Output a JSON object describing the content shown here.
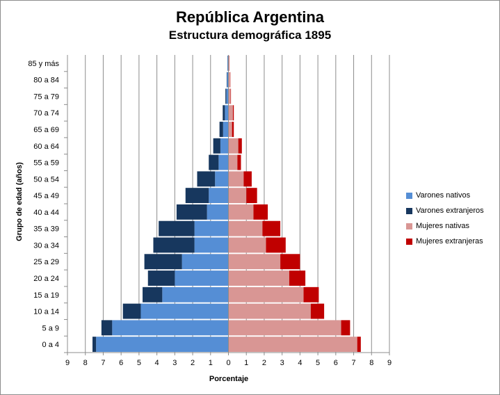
{
  "chart_data": {
    "type": "bar",
    "orientation": "horizontal",
    "title": "República Argentina",
    "subtitle": "Estructura demográfica 1895",
    "xlabel": "Porcentaje",
    "ylabel": "Grupo de edad (años)",
    "xlim": [
      -9,
      9
    ],
    "x_ticks": [
      9,
      8,
      7,
      6,
      5,
      4,
      3,
      2,
      1,
      0,
      1,
      2,
      3,
      4,
      5,
      6,
      7,
      8,
      9
    ],
    "grid": true,
    "legend_position": "right",
    "categories": [
      "0 a 4",
      "5 a 9",
      "10 a 14",
      "15 a 19",
      "20 a 24",
      "25 a 29",
      "30 a 34",
      "35 a 39",
      "40 a 44",
      "45 a 49",
      "50 a 54",
      "55 a 59",
      "60 a 64",
      "65 a 69",
      "70 a 74",
      "75 a 79",
      "80 a 84",
      "85 y más"
    ],
    "series": [
      {
        "name": "Varones nativos",
        "side": "left",
        "color": "#558ed5",
        "values": [
          7.4,
          6.5,
          4.9,
          3.7,
          3.0,
          2.6,
          1.9,
          1.9,
          1.2,
          1.1,
          0.75,
          0.55,
          0.45,
          0.3,
          0.2,
          0.12,
          0.08,
          0.05
        ]
      },
      {
        "name": "Varones extranjeros",
        "side": "left",
        "color": "#17375e",
        "values": [
          0.2,
          0.6,
          1.0,
          1.1,
          1.5,
          2.1,
          2.3,
          2.0,
          1.7,
          1.3,
          1.0,
          0.55,
          0.4,
          0.2,
          0.12,
          0.05,
          0.02,
          0.01
        ]
      },
      {
        "name": "Mujeres nativas",
        "side": "right",
        "color": "#d99694",
        "values": [
          7.2,
          6.3,
          4.6,
          4.2,
          3.4,
          2.9,
          2.1,
          1.9,
          1.4,
          1.0,
          0.85,
          0.5,
          0.55,
          0.2,
          0.25,
          0.12,
          0.1,
          0.05
        ]
      },
      {
        "name": "Mujeres extranjeras",
        "side": "right",
        "color": "#c00000",
        "values": [
          0.2,
          0.5,
          0.75,
          0.85,
          0.9,
          1.1,
          1.1,
          1.0,
          0.8,
          0.6,
          0.45,
          0.2,
          0.2,
          0.1,
          0.05,
          0.02,
          0.01,
          0.01
        ]
      }
    ]
  }
}
